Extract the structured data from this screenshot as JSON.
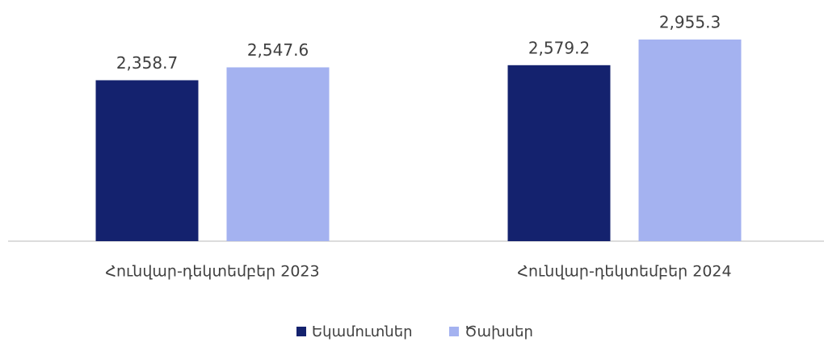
{
  "chart_data": {
    "type": "bar",
    "categories": [
      "Հունվար-դեկտեմբեր 2023",
      "Հունվար-դեկտեմբեր 2024"
    ],
    "series": [
      {
        "name": "Եկամուտներ",
        "color": "#14226e",
        "values": [
          2358.7,
          2579.2
        ],
        "value_labels": [
          "2,358.7",
          "2,579.2"
        ]
      },
      {
        "name": "Ծախսեր",
        "color": "#a4b2f0",
        "values": [
          2547.6,
          2955.3
        ],
        "value_labels": [
          "2,547.6",
          "2,955.3"
        ]
      }
    ]
  }
}
